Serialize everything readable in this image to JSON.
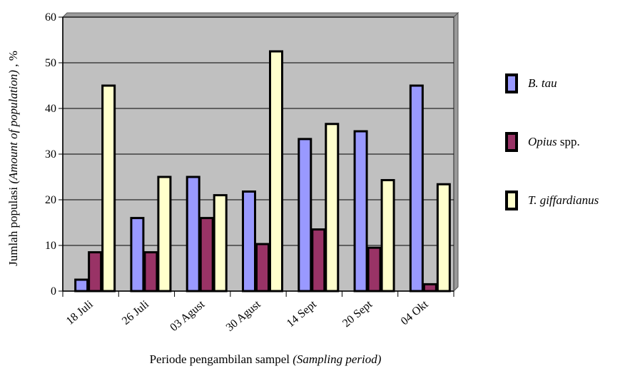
{
  "chart_data": {
    "type": "bar",
    "categories": [
      "18 Juli",
      "26 Juli",
      "03 Agust",
      "30 Agust",
      "14 Sept",
      "20 Sept",
      "04 Okt"
    ],
    "series": [
      {
        "name": "B. tau",
        "name_italic": "B. tau",
        "name_rest": "",
        "color": "#9999ff",
        "values": [
          2.5,
          16,
          25,
          21.8,
          33.3,
          35,
          45
        ]
      },
      {
        "name": "Opius spp.",
        "name_italic": "Opius",
        "name_rest": " spp.",
        "color": "#993366",
        "values": [
          8.5,
          8.5,
          16,
          10.3,
          13.5,
          9.5,
          1.5
        ]
      },
      {
        "name": "T. giffardianus",
        "name_italic": "T. giffardianus",
        "name_rest": "",
        "color": "#ffffcc",
        "values": [
          45,
          25,
          21,
          52.5,
          36.6,
          24.3,
          23.4
        ]
      }
    ],
    "ylabel": "Jumlah populasi",
    "ylabel_italic": "(Amount of population)",
    "ylabel_unit": ", %",
    "xlabel": "Periode pengambilan sampel",
    "xlabel_italic": "(Sampling period)",
    "ylim": [
      0,
      60
    ],
    "yticks": [
      0,
      10,
      20,
      30,
      40,
      50,
      60
    ],
    "grid": true,
    "legend_position": "right",
    "plot_background": "#c0c0c0"
  }
}
